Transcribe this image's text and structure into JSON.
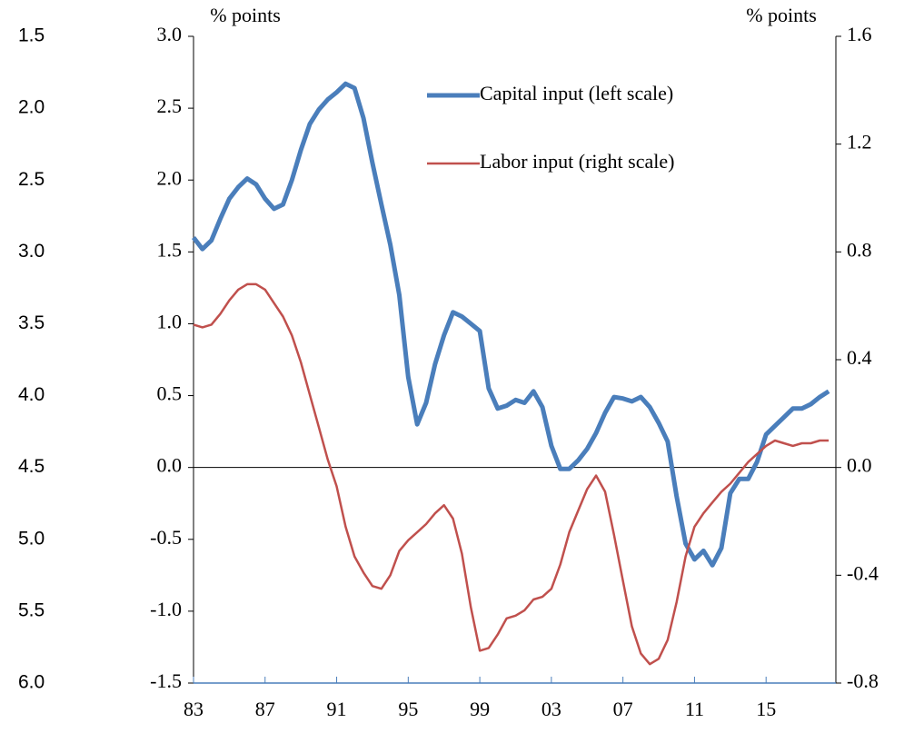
{
  "chart_data": {
    "type": "line",
    "y_label": "% points",
    "y2_label": "% points",
    "x": [
      1983,
      1983.5,
      1984,
      1984.5,
      1985,
      1985.5,
      1986,
      1986.5,
      1987,
      1987.5,
      1988,
      1988.5,
      1989,
      1989.5,
      1990,
      1990.5,
      1991,
      1991.5,
      1992,
      1992.5,
      1993,
      1993.5,
      1994,
      1994.5,
      1995,
      1995.5,
      1996,
      1996.5,
      1997,
      1997.5,
      1998,
      1998.5,
      1999,
      1999.5,
      2000,
      2000.5,
      2001,
      2001.5,
      2002,
      2002.5,
      2003,
      2003.5,
      2004,
      2004.5,
      2005,
      2005.5,
      2006,
      2006.5,
      2007,
      2007.5,
      2008,
      2008.5,
      2009,
      2009.5,
      2010,
      2010.5,
      2011,
      2011.5,
      2012,
      2012.5,
      2013,
      2013.5,
      2014,
      2014.5,
      2015,
      2015.5,
      2016,
      2016.5,
      2017,
      2017.5,
      2018,
      2018.5
    ],
    "series": [
      {
        "name": "Capital input (left scale)",
        "color": "#4a7ebb",
        "axis": "y",
        "values": [
          1.6,
          1.52,
          1.58,
          1.73,
          1.87,
          1.95,
          2.01,
          1.97,
          1.87,
          1.8,
          1.83,
          2.0,
          2.21,
          2.39,
          2.49,
          2.56,
          2.61,
          2.67,
          2.64,
          2.43,
          2.12,
          1.83,
          1.55,
          1.2,
          0.63,
          0.3,
          0.45,
          0.72,
          0.92,
          1.08,
          1.05,
          1.0,
          0.95,
          0.55,
          0.41,
          0.43,
          0.47,
          0.45,
          0.53,
          0.42,
          0.15,
          -0.01,
          -0.01,
          0.05,
          0.13,
          0.24,
          0.38,
          0.49,
          0.48,
          0.46,
          0.49,
          0.42,
          0.31,
          0.18,
          -0.2,
          -0.53,
          -0.64,
          -0.58,
          -0.68,
          -0.56,
          -0.18,
          -0.08,
          -0.08,
          0.04,
          0.23,
          0.29,
          0.35,
          0.41,
          0.41,
          0.44,
          0.49,
          0.53
        ]
      },
      {
        "name": "Labor input (right scale)",
        "color": "#c0504d",
        "axis": "y2",
        "values": [
          0.53,
          0.52,
          0.53,
          0.57,
          0.62,
          0.66,
          0.68,
          0.68,
          0.66,
          0.61,
          0.56,
          0.49,
          0.39,
          0.27,
          0.15,
          0.03,
          -0.07,
          -0.22,
          -0.33,
          -0.39,
          -0.44,
          -0.45,
          -0.4,
          -0.31,
          -0.27,
          -0.24,
          -0.21,
          -0.17,
          -0.14,
          -0.19,
          -0.32,
          -0.52,
          -0.68,
          -0.67,
          -0.62,
          -0.56,
          -0.55,
          -0.53,
          -0.49,
          -0.48,
          -0.45,
          -0.36,
          -0.24,
          -0.16,
          -0.08,
          -0.03,
          -0.09,
          -0.25,
          -0.42,
          -0.59,
          -0.69,
          -0.73,
          -0.71,
          -0.64,
          -0.5,
          -0.33,
          -0.22,
          -0.17,
          -0.13,
          -0.09,
          -0.06,
          -0.02,
          0.02,
          0.05,
          0.08,
          0.1,
          0.09,
          0.08,
          0.09,
          0.09,
          0.1,
          0.1
        ]
      }
    ],
    "xlim": [
      1983,
      2018.9
    ],
    "xticks": [
      {
        "value": 1983,
        "label": "83"
      },
      {
        "value": 1987,
        "label": "87"
      },
      {
        "value": 1991,
        "label": "91"
      },
      {
        "value": 1995,
        "label": "95"
      },
      {
        "value": 1999,
        "label": "99"
      },
      {
        "value": 2003,
        "label": "03"
      },
      {
        "value": 2007,
        "label": "07"
      },
      {
        "value": 2011,
        "label": "11"
      },
      {
        "value": 2015,
        "label": "15"
      }
    ],
    "ylim": [
      -1.5,
      3.0
    ],
    "yticks": [
      -1.5,
      {
        "value": -1,
        "label": "-1.0"
      },
      -0.5,
      {
        "value": 0,
        "label": "0.0"
      },
      0.5,
      {
        "value": 1,
        "label": "1.0"
      },
      1.5,
      {
        "value": 2,
        "label": "2.0"
      },
      2.5,
      {
        "value": 3,
        "label": "3.0"
      }
    ],
    "y2lim": [
      -0.8,
      1.6
    ],
    "y2ticks": [
      -0.8,
      -0.4,
      {
        "value": 0,
        "label": "0.0"
      },
      0.4,
      0.8,
      1.2,
      1.6
    ],
    "y3lim": [
      6.0,
      1.5
    ],
    "y3ticks": [
      1.5,
      {
        "value": 2,
        "label": "2.0"
      },
      2.5,
      {
        "value": 3,
        "label": "3.0"
      },
      3.5,
      {
        "value": 4,
        "label": "4.0"
      },
      4.5,
      {
        "value": 5,
        "label": "5.0"
      },
      5.5,
      {
        "value": 6,
        "label": "6.0"
      }
    ],
    "grid": false,
    "legend": "upper center"
  }
}
